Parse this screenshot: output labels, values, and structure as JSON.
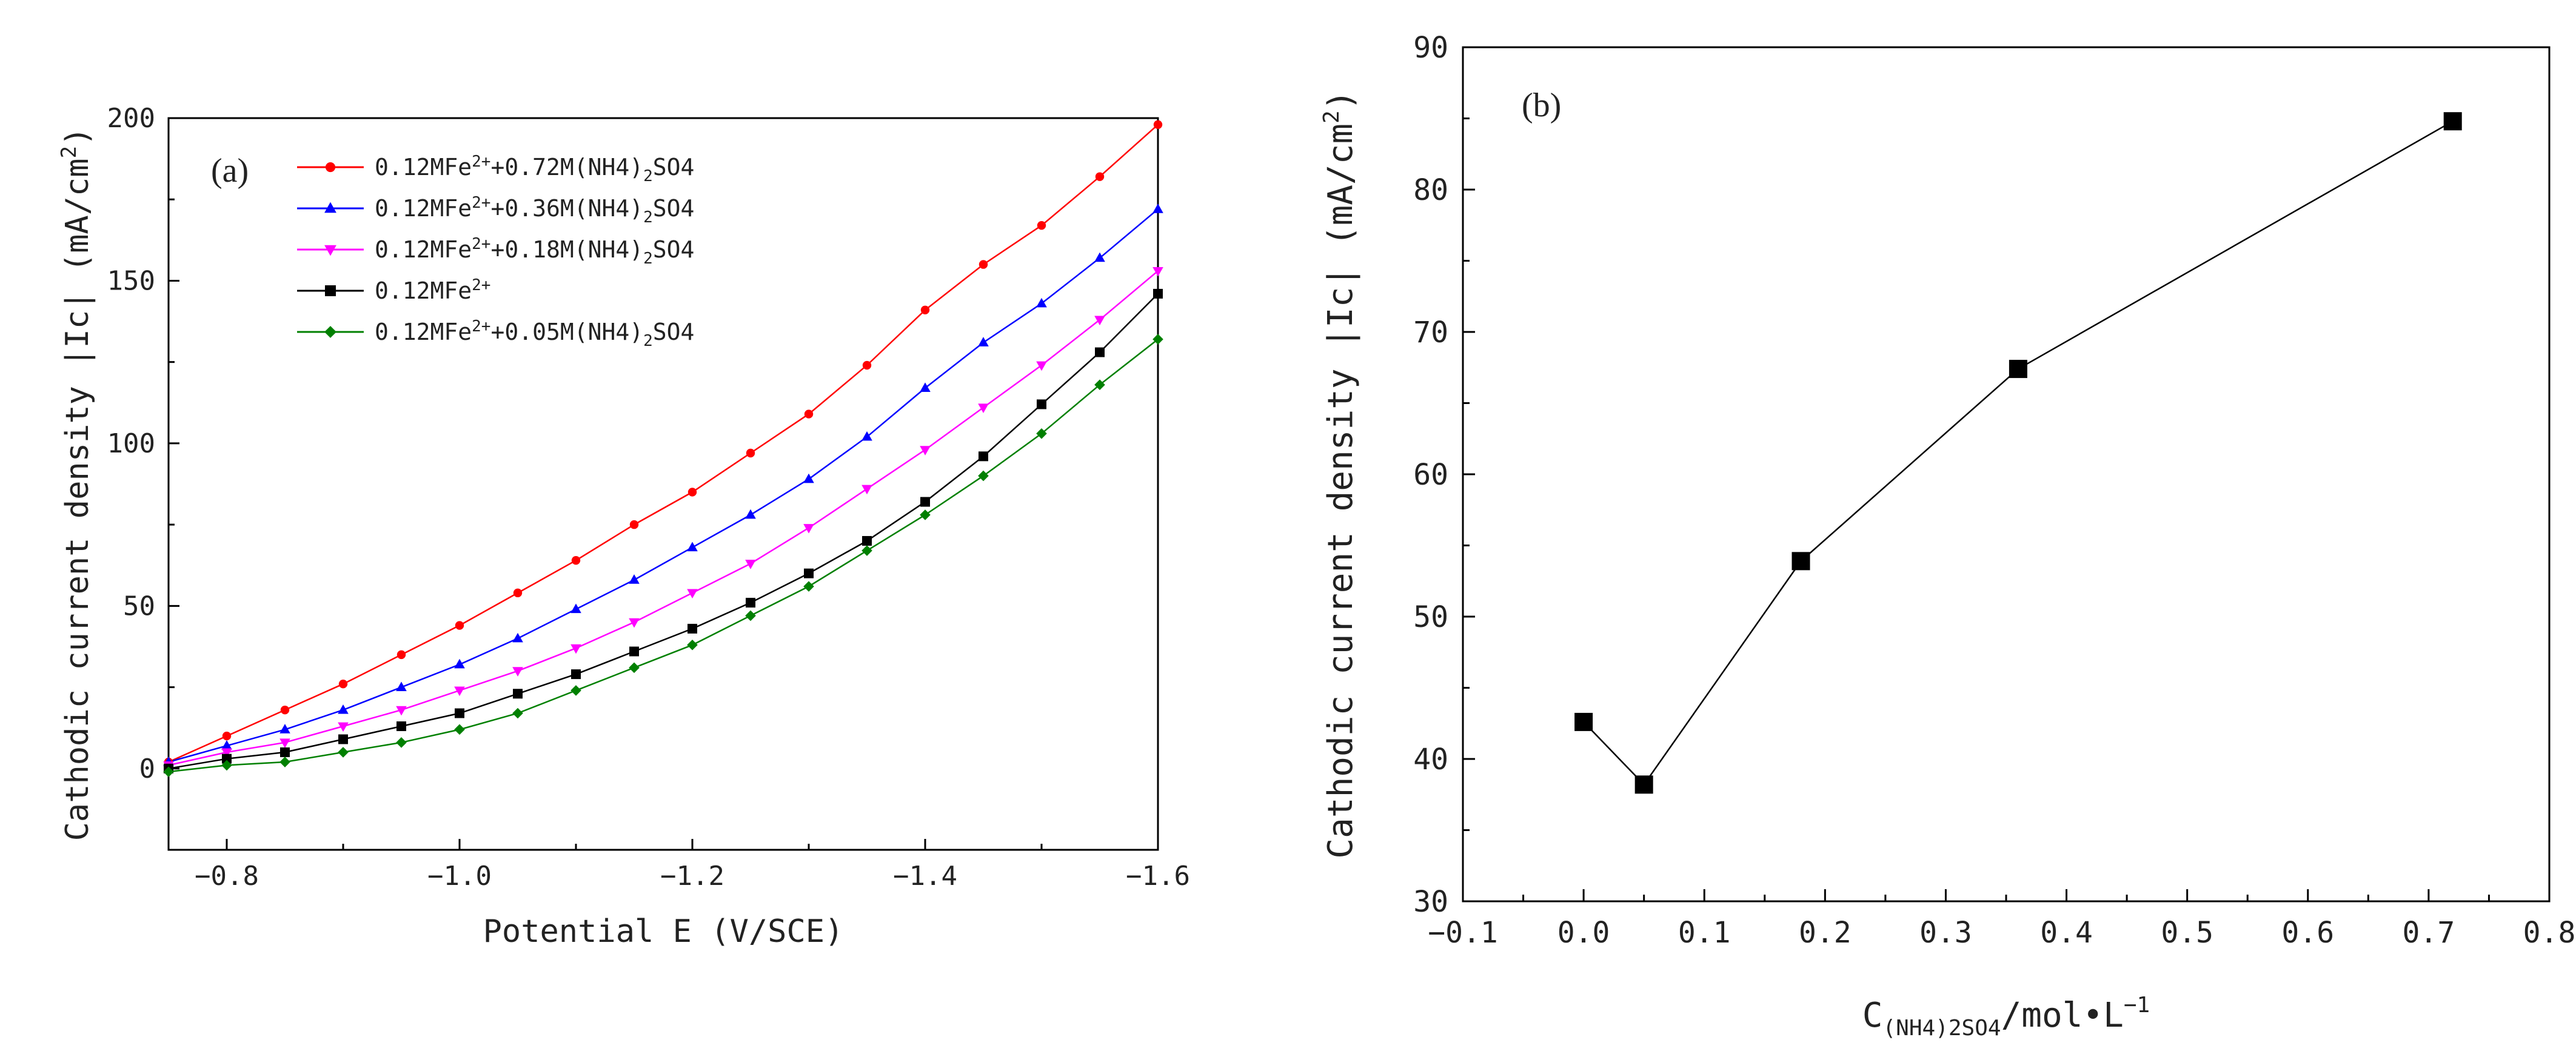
{
  "chart_data": [
    {
      "type": "line",
      "panel_label": "(a)",
      "xlabel": "Potential E (V/SCE)",
      "ylabel": "Cathodic current density |Ic| (mA/cm",
      "ylabel_sup": "2",
      "ylabel_end": ")",
      "xlim": [
        -0.75,
        -1.6
      ],
      "ylim": [
        -25,
        200
      ],
      "xticks": [
        -0.8,
        -1.0,
        -1.2,
        -1.4,
        -1.6
      ],
      "xtick_labels": [
        "−0.8",
        "−1.0",
        "−1.2",
        "−1.4",
        "−1.6"
      ],
      "yticks": [
        0,
        50,
        100,
        150,
        200
      ],
      "ytick_labels": [
        "0",
        "50",
        "100",
        "150",
        "200"
      ],
      "x": [
        -0.75,
        -0.8,
        -0.85,
        -0.9,
        -0.95,
        -1.0,
        -1.05,
        -1.1,
        -1.15,
        -1.2,
        -1.25,
        -1.3,
        -1.35,
        -1.4,
        -1.45,
        -1.5,
        -1.55,
        -1.6
      ],
      "series": [
        {
          "name": "0.12MFe2++0.72M(NH4)2SO4",
          "legend_parts": [
            "0.12MFe",
            "2+",
            "+0.72M(NH4)",
            "2",
            "SO4"
          ],
          "color": "#ff0000",
          "marker": "circle",
          "values": [
            2,
            10,
            18,
            26,
            35,
            44,
            54,
            64,
            75,
            85,
            97,
            109,
            124,
            141,
            155,
            167,
            182,
            198
          ]
        },
        {
          "name": "0.12MFe2++0.36M(NH4)2SO4",
          "legend_parts": [
            "0.12MFe",
            "2+",
            "+0.36M(NH4)",
            "2",
            "SO4"
          ],
          "color": "#0000ff",
          "marker": "triangle-up",
          "values": [
            2,
            7,
            12,
            18,
            25,
            32,
            40,
            49,
            58,
            68,
            78,
            89,
            102,
            117,
            131,
            143,
            157,
            172
          ]
        },
        {
          "name": "0.12MFe2++0.18M(NH4)2SO4",
          "legend_parts": [
            "0.12MFe",
            "2+",
            "+0.18M(NH4)",
            "2",
            "SO4"
          ],
          "color": "#ff00ff",
          "marker": "triangle-down",
          "values": [
            1,
            5,
            8,
            13,
            18,
            24,
            30,
            37,
            45,
            54,
            63,
            74,
            86,
            98,
            111,
            124,
            138,
            153
          ]
        },
        {
          "name": "0.12MFe2+",
          "legend_parts": [
            "0.12MFe",
            "2+",
            "",
            "",
            ""
          ],
          "color": "#000000",
          "marker": "square",
          "values": [
            0,
            3,
            5,
            9,
            13,
            17,
            23,
            29,
            36,
            43,
            51,
            60,
            70,
            82,
            96,
            112,
            128,
            146
          ]
        },
        {
          "name": "0.12MFe2++0.05M(NH4)2SO4",
          "legend_parts": [
            "0.12MFe",
            "2+",
            "+0.05M(NH4)",
            "2",
            "SO4"
          ],
          "color": "#008000",
          "marker": "diamond",
          "values": [
            -1,
            1,
            2,
            5,
            8,
            12,
            17,
            24,
            31,
            38,
            47,
            56,
            67,
            78,
            90,
            103,
            118,
            132
          ]
        }
      ]
    },
    {
      "type": "line",
      "panel_label": "(b)",
      "ylabel": "Cathodic current density |Ic| (mA/cm",
      "ylabel_sup": "2",
      "ylabel_end": ")",
      "xlabel_parts": [
        "C",
        "(NH4)2SO4",
        "/mol•L",
        "−1"
      ],
      "xlim": [
        -0.1,
        0.8
      ],
      "ylim": [
        30,
        90
      ],
      "xticks": [
        -0.1,
        0.0,
        0.1,
        0.2,
        0.3,
        0.4,
        0.5,
        0.6,
        0.7,
        0.8
      ],
      "xtick_labels": [
        "−0.1",
        "0.0",
        "0.1",
        "0.2",
        "0.3",
        "0.4",
        "0.5",
        "0.6",
        "0.7",
        "0.8"
      ],
      "yticks": [
        30,
        40,
        50,
        60,
        70,
        80,
        90
      ],
      "ytick_labels": [
        "30",
        "40",
        "50",
        "60",
        "70",
        "80",
        "90"
      ],
      "x": [
        0.0,
        0.05,
        0.18,
        0.36,
        0.72
      ],
      "series": [
        {
          "name": "Ic",
          "color": "#000000",
          "marker": "square",
          "values": [
            42.6,
            38.2,
            53.9,
            67.4,
            84.8
          ]
        }
      ]
    }
  ]
}
